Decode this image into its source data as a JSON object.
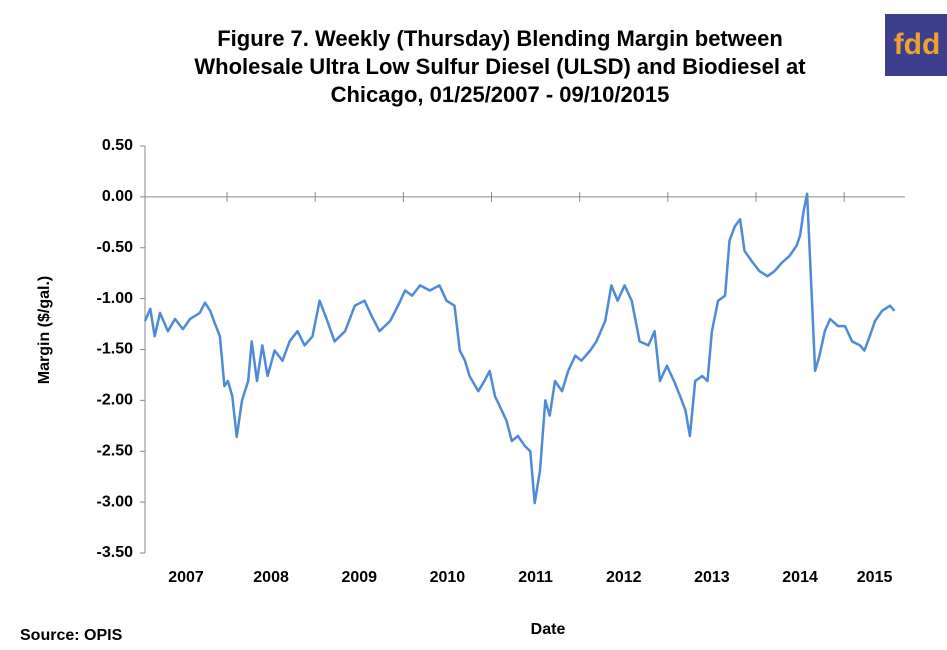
{
  "logo": "fdd",
  "chart_data": {
    "type": "line",
    "title": [
      "Figure 7. Weekly (Thursday) Blending Margin between",
      "Wholesale Ultra Low Sulfur Diesel (ULSD) and Biodiesel at",
      "Chicago, 01/25/2007 - 09/10/2015"
    ],
    "ylabel": "Margin ($/gal.)",
    "xlabel": "Date",
    "source": "Source: OPIS",
    "color": "#4f8ad6",
    "xlim": [
      2007.07,
      2015.69
    ],
    "xticks": [
      2007,
      2008,
      2009,
      2010,
      2011,
      2012,
      2013,
      2014,
      2015
    ],
    "ylim": [
      -3.5,
      0.5
    ],
    "yticks": [
      {
        "value": -3.5,
        "label": "-3.50"
      },
      {
        "value": -3,
        "label": "-3.00"
      },
      {
        "value": -2.5,
        "label": "-2.50"
      },
      {
        "value": -2,
        "label": "-2.00"
      },
      {
        "value": -1.5,
        "label": "-1.50"
      },
      {
        "value": -1,
        "label": "-1.00"
      },
      {
        "value": -0.5,
        "label": "-0.50"
      },
      {
        "value": 0,
        "label": "0.00"
      },
      {
        "value": 0.5,
        "label": "0.50"
      }
    ],
    "x": [
      2007.07,
      2007.13,
      2007.18,
      2007.24,
      2007.33,
      2007.41,
      2007.5,
      2007.58,
      2007.69,
      2007.75,
      2007.81,
      2007.86,
      2007.92,
      2007.97,
      2008.01,
      2008.06,
      2008.11,
      2008.17,
      2008.24,
      2008.28,
      2008.34,
      2008.4,
      2008.46,
      2008.54,
      2008.63,
      2008.71,
      2008.8,
      2008.88,
      2008.97,
      2009.05,
      2009.13,
      2009.22,
      2009.34,
      2009.45,
      2009.56,
      2009.64,
      2009.73,
      2009.85,
      2009.94,
      2010.02,
      2010.1,
      2010.19,
      2010.3,
      2010.41,
      2010.49,
      2010.58,
      2010.64,
      2010.7,
      2010.75,
      2010.85,
      2010.92,
      2010.98,
      2011.04,
      2011.09,
      2011.17,
      2011.23,
      2011.3,
      2011.38,
      2011.44,
      2011.49,
      2011.55,
      2011.61,
      2011.66,
      2011.72,
      2011.8,
      2011.87,
      2011.95,
      2012.02,
      2012.12,
      2012.19,
      2012.29,
      2012.36,
      2012.43,
      2012.51,
      2012.59,
      2012.68,
      2012.78,
      2012.85,
      2012.91,
      2012.99,
      2013.07,
      2013.14,
      2013.2,
      2013.25,
      2013.31,
      2013.39,
      2013.45,
      2013.5,
      2013.57,
      2013.65,
      2013.7,
      2013.76,
      2013.82,
      2013.87,
      2013.95,
      2014.04,
      2014.13,
      2014.21,
      2014.29,
      2014.38,
      2014.46,
      2014.5,
      2014.54,
      2014.58,
      2014.63,
      2014.67,
      2014.72,
      2014.78,
      2014.84,
      2014.93,
      2015.01,
      2015.09,
      2015.18,
      2015.23,
      2015.29,
      2015.35,
      2015.43,
      2015.52,
      2015.57
    ],
    "values": [
      -1.22,
      -1.1,
      -1.37,
      -1.14,
      -1.32,
      -1.2,
      -1.3,
      -1.2,
      -1.14,
      -1.04,
      -1.12,
      -1.24,
      -1.37,
      -1.86,
      -1.81,
      -1.96,
      -2.36,
      -2.0,
      -1.81,
      -1.42,
      -1.81,
      -1.46,
      -1.76,
      -1.51,
      -1.61,
      -1.42,
      -1.32,
      -1.46,
      -1.37,
      -1.02,
      -1.2,
      -1.42,
      -1.32,
      -1.07,
      -1.02,
      -1.17,
      -1.32,
      -1.22,
      -1.07,
      -0.92,
      -0.97,
      -0.87,
      -0.92,
      -0.87,
      -1.02,
      -1.07,
      -1.51,
      -1.61,
      -1.76,
      -1.91,
      -1.81,
      -1.71,
      -1.96,
      -2.05,
      -2.2,
      -2.4,
      -2.35,
      -2.45,
      -2.5,
      -3.01,
      -2.69,
      -2.0,
      -2.15,
      -1.81,
      -1.91,
      -1.71,
      -1.56,
      -1.61,
      -1.51,
      -1.42,
      -1.22,
      -0.87,
      -1.02,
      -0.87,
      -1.02,
      -1.42,
      -1.46,
      -1.32,
      -1.81,
      -1.66,
      -1.81,
      -1.96,
      -2.1,
      -2.35,
      -1.81,
      -1.76,
      -1.81,
      -1.32,
      -1.02,
      -0.97,
      -0.43,
      -0.29,
      -0.22,
      -0.53,
      -0.63,
      -0.73,
      -0.78,
      -0.73,
      -0.65,
      -0.58,
      -0.48,
      -0.38,
      -0.14,
      0.03,
      -0.92,
      -1.71,
      -1.56,
      -1.32,
      -1.2,
      -1.27,
      -1.27,
      -1.42,
      -1.46,
      -1.51,
      -1.37,
      -1.22,
      -1.12,
      -1.07,
      -1.12
    ]
  }
}
